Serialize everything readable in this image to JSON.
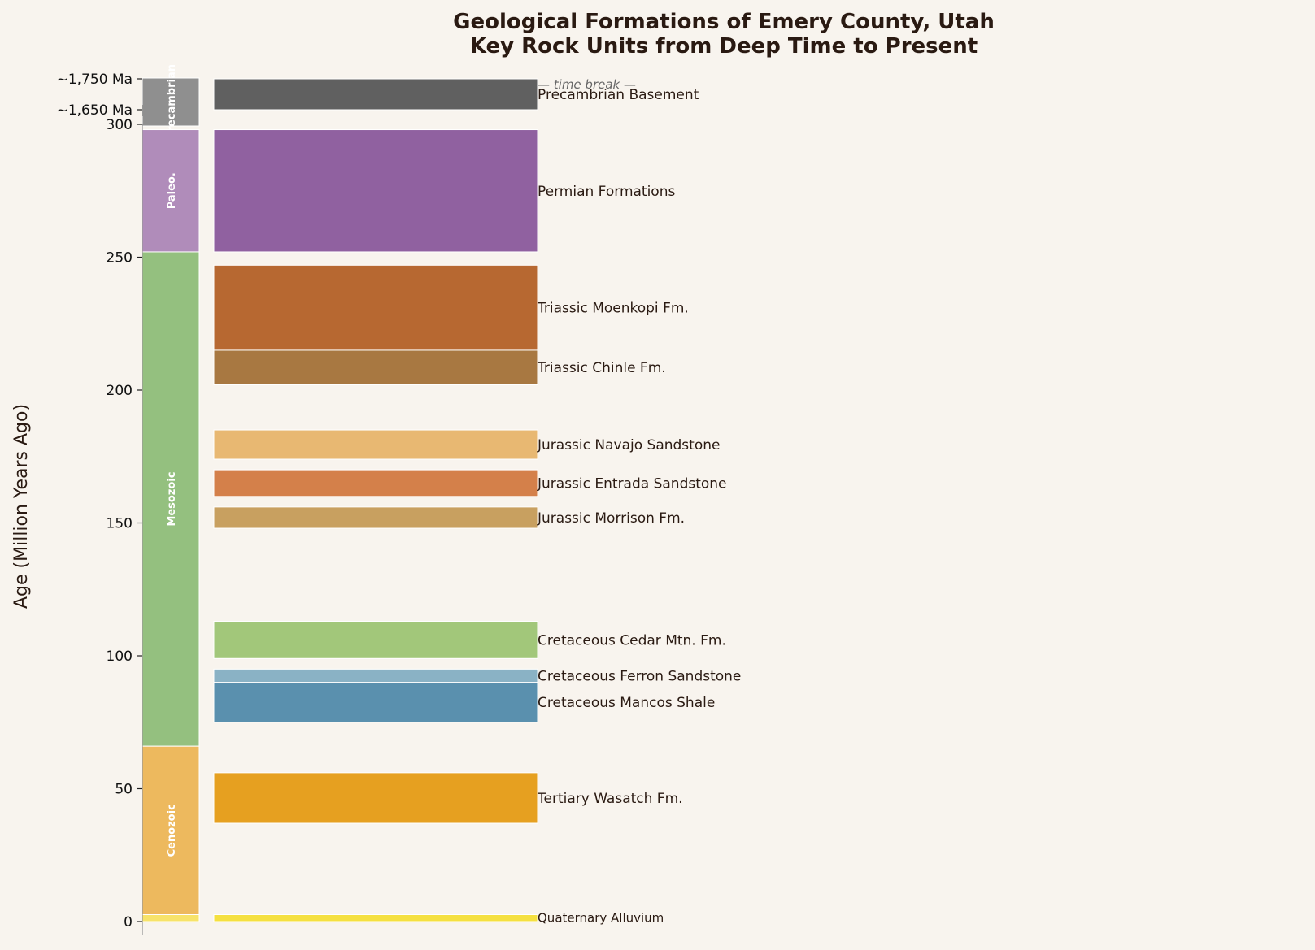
{
  "chart_data": {
    "type": "bar",
    "title": "Geological Formations of Emery County, Utah",
    "subtitle": "Key Rock Units from Deep Time to Present",
    "ylabel": "Age (Million Years Ago)",
    "ylim": [
      0,
      300
    ],
    "yticks": [
      0,
      50,
      100,
      150,
      200,
      250,
      300
    ],
    "grid": false,
    "break_ticks": [
      "~1,650 Ma",
      "~1,750 Ma"
    ],
    "break_label": "— time break —",
    "eras": [
      {
        "name": "Precambrian",
        "color": "#8f8f8f",
        "break": true
      },
      {
        "name": "Paleo.",
        "start": 298,
        "end": 252,
        "color": "#b08cba"
      },
      {
        "name": "Mesozoic",
        "start": 252,
        "end": 66,
        "color": "#94c07f"
      },
      {
        "name": "Cenozoic",
        "start": 66,
        "end": 2.6,
        "color": "#edb95e"
      },
      {
        "name": "",
        "start": 2.6,
        "end": 0,
        "color": "#f7e36a"
      }
    ],
    "formations": [
      {
        "name": "Precambrian Basement",
        "color": "#606060",
        "break": true
      },
      {
        "name": "Permian Formations",
        "start": 298,
        "end": 252,
        "color": "#9061a0"
      },
      {
        "name": "Triassic Moenkopi Fm.",
        "start": 247,
        "end": 215,
        "color": "#b76831"
      },
      {
        "name": "Triassic Chinle Fm.",
        "start": 215,
        "end": 202,
        "color": "#a87841"
      },
      {
        "name": "Jurassic Navajo Sandstone",
        "start": 185,
        "end": 174,
        "color": "#e8b872"
      },
      {
        "name": "Jurassic Entrada Sandstone",
        "start": 170,
        "end": 160,
        "color": "#d4804a"
      },
      {
        "name": "Jurassic Morrison Fm.",
        "start": 156,
        "end": 148,
        "color": "#c8a060"
      },
      {
        "name": "Cretaceous Cedar Mtn. Fm.",
        "start": 113,
        "end": 99,
        "color": "#a2c77a"
      },
      {
        "name": "Cretaceous Ferron Sandstone",
        "start": 95,
        "end": 90,
        "color": "#8ab2c5"
      },
      {
        "name": "Cretaceous Mancos Shale",
        "start": 90,
        "end": 75,
        "color": "#5a90ae"
      },
      {
        "name": "Tertiary Wasatch Fm.",
        "start": 56,
        "end": 37,
        "color": "#e6a020"
      },
      {
        "name": "Quaternary Alluvium",
        "start": 2.6,
        "end": 0,
        "color": "#f5e040"
      }
    ]
  }
}
